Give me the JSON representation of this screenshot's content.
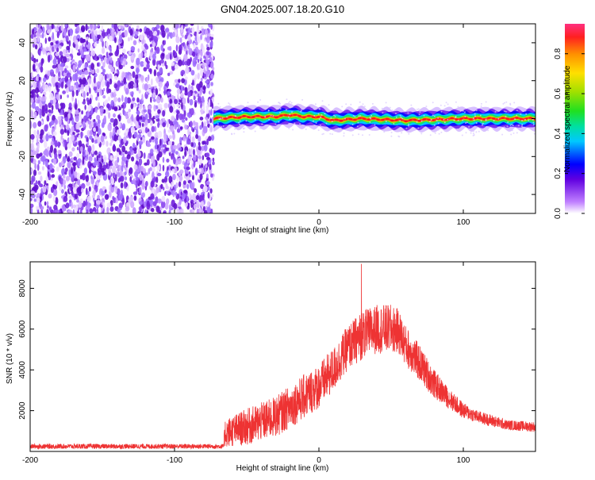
{
  "title": "GN04.2025.007.18.20.G10",
  "chart_data": [
    {
      "type": "heatmap",
      "title": "GN04.2025.007.18.20.G10",
      "xlabel": "Height of straight line (km)",
      "ylabel": "Frequency (Hz)",
      "xlim": [
        -200,
        150
      ],
      "ylim": [
        -50,
        50
      ],
      "x_ticks": [
        -200,
        -100,
        0,
        100
      ],
      "y_ticks": [
        -40,
        -20,
        0,
        20,
        40
      ],
      "colorbar": {
        "label": "Normalized spectral amplitude",
        "range": [
          0,
          0.95
        ],
        "ticks": [
          0,
          0.2,
          0.4,
          0.6,
          0.8
        ]
      },
      "noise_region_x": [
        -200,
        -73
      ],
      "signal_band": {
        "x": [
          -73,
          -50,
          -30,
          -20,
          -10,
          0,
          10,
          30,
          60,
          100,
          150
        ],
        "freq_center": [
          0,
          1,
          1,
          2,
          1,
          1,
          -1,
          0,
          -1,
          0,
          0
        ],
        "half_width": [
          3,
          3,
          3,
          3,
          3,
          3,
          3,
          3,
          3,
          3,
          3
        ]
      }
    },
    {
      "type": "line",
      "xlabel": "Height of straight line (km)",
      "ylabel": "SNR (10 * v/v)",
      "xlim": [
        -200,
        150
      ],
      "ylim": [
        0,
        9300
      ],
      "x_ticks": [
        -200,
        -100,
        0,
        100
      ],
      "y_ticks": [
        2000,
        4000,
        6000,
        8000
      ],
      "color": "#ee3333",
      "envelope_x": [
        -200,
        -150,
        -100,
        -66,
        -65,
        -50,
        -30,
        -10,
        0,
        10,
        20,
        30,
        40,
        50,
        55,
        60,
        70,
        80,
        90,
        100,
        110,
        120,
        130,
        140,
        150
      ],
      "envelope_center": [
        250,
        250,
        250,
        250,
        900,
        1200,
        1700,
        2700,
        3200,
        4000,
        5100,
        5700,
        6000,
        6000,
        5900,
        5200,
        4300,
        3300,
        2600,
        2000,
        1700,
        1500,
        1300,
        1250,
        1200
      ],
      "envelope_spread": [
        120,
        120,
        120,
        120,
        700,
        900,
        1000,
        1100,
        1100,
        1100,
        1100,
        1200,
        1200,
        1200,
        1100,
        1000,
        900,
        700,
        500,
        400,
        300,
        300,
        250,
        250,
        250
      ]
    }
  ]
}
